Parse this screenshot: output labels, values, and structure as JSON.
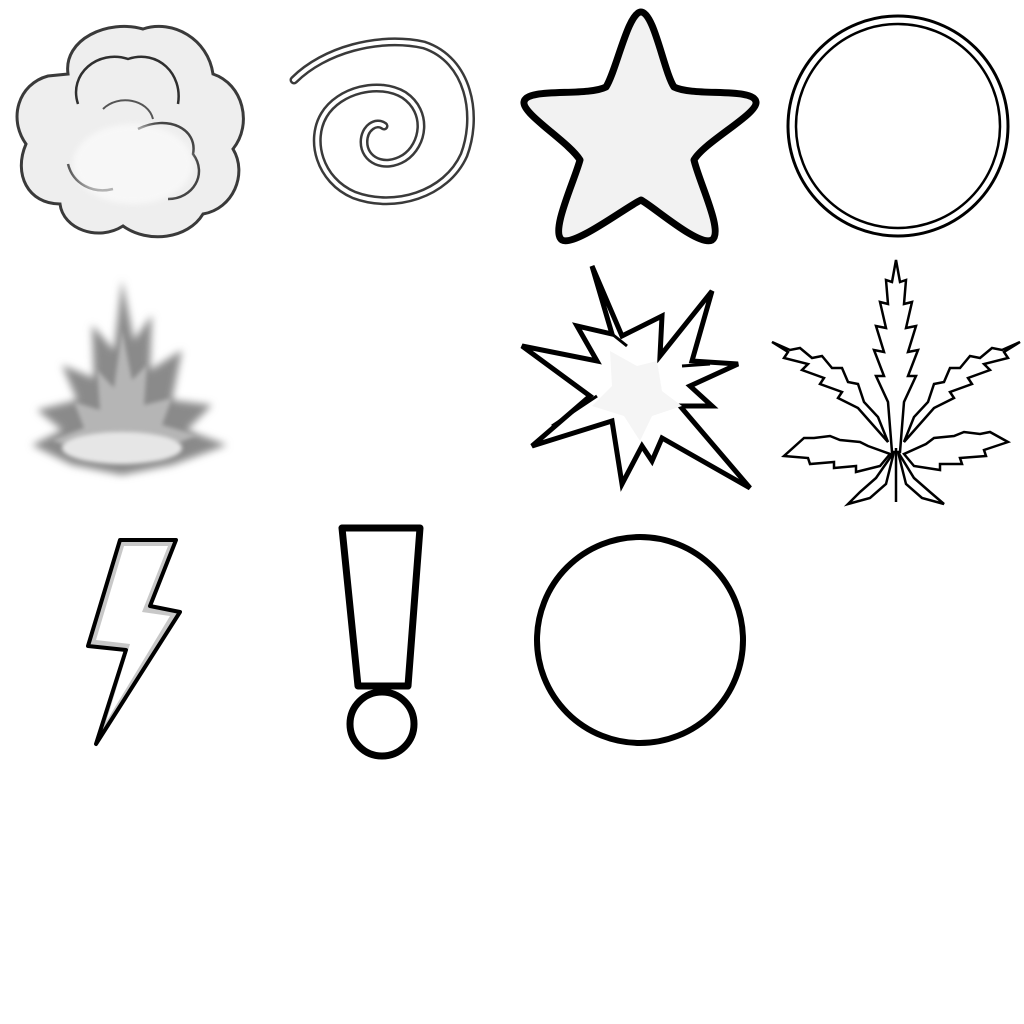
{
  "palette": {
    "background": "#ffffff",
    "outline": "#000000",
    "fill_light": "#f2f2f2",
    "shade": "#c8c8c8",
    "smoke_gray": "#8a8a8a"
  },
  "sprites": [
    {
      "icon": "smoke-cloud-icon"
    },
    {
      "icon": "spiral-icon"
    },
    {
      "icon": "star-icon"
    },
    {
      "icon": "double-ring-icon"
    },
    {
      "icon": "flame-burst-icon"
    },
    {
      "icon": "explosion-burst-icon"
    },
    {
      "icon": "leaf-icon"
    },
    {
      "icon": "lightning-bolt-icon"
    },
    {
      "icon": "exclamation-mark-icon"
    },
    {
      "icon": "circle-outline-icon"
    }
  ]
}
